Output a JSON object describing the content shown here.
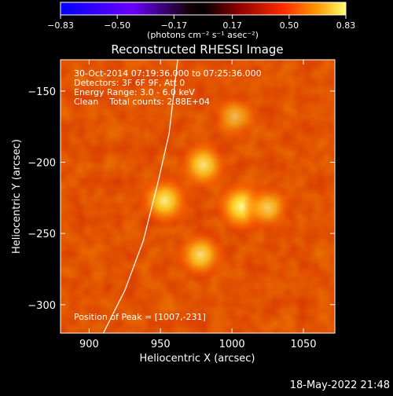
{
  "chart_data": {
    "type": "heatmap",
    "title": "Reconstructed RHESSI Image",
    "xlabel": "Heliocentric X (arcsec)",
    "ylabel": "Heliocentric Y (arcsec)",
    "xlim": [
      880,
      1072
    ],
    "ylim": [
      -320,
      -128
    ],
    "x_ticks": [
      900,
      950,
      1000,
      1050
    ],
    "y_ticks": [
      -150,
      -200,
      -250,
      -300
    ],
    "x_tick_labels": [
      "900",
      "950",
      "1000",
      "1050"
    ],
    "y_tick_labels": [
      "−150",
      "−200",
      "−250",
      "−300"
    ],
    "colorbar": {
      "range": [
        -0.83,
        0.83
      ],
      "ticks": [
        -0.83,
        -0.5,
        -0.17,
        0.17,
        0.5,
        0.83
      ],
      "tick_labels": [
        "−0.83",
        "−0.50",
        "−0.17",
        "0.17",
        "0.50",
        "0.83"
      ],
      "unit_label": "(photons cm⁻² s⁻¹ asec⁻²)",
      "colormap": [
        "#0000ff",
        "#7000ff",
        "#000000",
        "#8a0000",
        "#ff2a00",
        "#ff9a00",
        "#ffff60"
      ]
    },
    "annotations": {
      "time_range": "30-Oct-2014 07:19:36.000 to 07:25:36.000",
      "detectors": "Detectors: 3F 6F 9F, Att 0",
      "energy_range": "Energy Range: 3.0 - 6.0 keV",
      "algorithm": "Clean    Total counts: 2.88E+04",
      "peak": "Position of Peak = [1007,-231]"
    },
    "sources": [
      {
        "x": 1007,
        "y": -231,
        "relative_intensity": 1.0
      },
      {
        "x": 953,
        "y": -227,
        "relative_intensity": 0.9
      },
      {
        "x": 980,
        "y": -202,
        "relative_intensity": 0.85
      },
      {
        "x": 978,
        "y": -265,
        "relative_intensity": 0.8
      },
      {
        "x": 1002,
        "y": -168,
        "relative_intensity": 0.6
      },
      {
        "x": 1025,
        "y": -232,
        "relative_intensity": 0.7
      }
    ],
    "limb_curve": [
      {
        "x": 910,
        "y": -320
      },
      {
        "x": 925,
        "y": -290
      },
      {
        "x": 938,
        "y": -255
      },
      {
        "x": 948,
        "y": -215
      },
      {
        "x": 956,
        "y": -180
      },
      {
        "x": 962,
        "y": -128
      }
    ]
  },
  "footer": {
    "date": "18-May-2022 21:48"
  }
}
